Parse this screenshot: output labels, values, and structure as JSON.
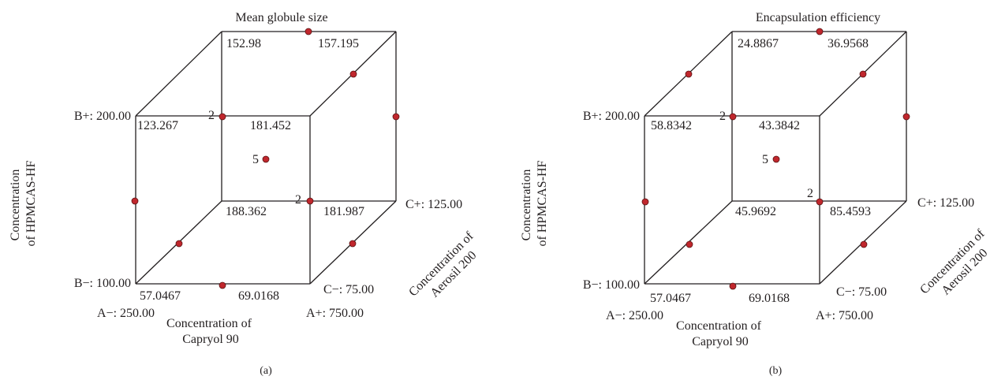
{
  "colors": {
    "line": "#231f20",
    "point": "#c0272d"
  },
  "panels": [
    {
      "title": "Mean globule size",
      "caption": "(a)",
      "corner_values": {
        "back_top_left": "152.98",
        "back_top_right": "157.195",
        "front_top_left": "123.267",
        "front_top_right": "181.452",
        "back_bottom_left": "188.362",
        "back_bottom_right": "181.987",
        "front_bottom_left": "57.0467",
        "front_bottom_right": "69.0168"
      },
      "replicate_counts": {
        "front_top_left": "2",
        "front_bottom_right": "2",
        "center": "5"
      },
      "axis_b": {
        "label_line1": "Concentration",
        "label_line2": "of HPMCAS-HF",
        "high": "B+: 200.00",
        "low": "B−: 100.00"
      },
      "axis_a": {
        "label_line1": "Concentration of",
        "label_line2": "Capryol 90",
        "low": "A−: 250.00",
        "high": "A+: 750.00"
      },
      "axis_c": {
        "label_line1": "Concentration of",
        "label_line2": "Aerosil 200",
        "low": "C−: 75.00",
        "high": "C+: 125.00"
      }
    },
    {
      "title": "Encapsulation efficiency",
      "caption": "(b)",
      "corner_values": {
        "back_top_left": "24.8867",
        "back_top_right": "36.9568",
        "front_top_left": "58.8342",
        "front_top_right": "43.3842",
        "back_bottom_left": "45.9692",
        "back_bottom_right": "85.4593",
        "front_bottom_left": "57.0467",
        "front_bottom_right": "69.0168"
      },
      "replicate_counts": {
        "front_top_left": "2",
        "front_bottom_right": "2",
        "center": "5"
      },
      "axis_b": {
        "label_line1": "Concentration",
        "label_line2": "of HPMCAS-HF",
        "high": "B+: 200.00",
        "low": "B−: 100.00"
      },
      "axis_a": {
        "label_line1": "Concentration of",
        "label_line2": "Capryol 90",
        "low": "A−: 250.00",
        "high": "A+: 750.00"
      },
      "axis_c": {
        "label_line1": "Concentration of",
        "label_line2": "Aerosil 200",
        "low": "C−: 75.00",
        "high": "C+: 125.00"
      }
    }
  ]
}
